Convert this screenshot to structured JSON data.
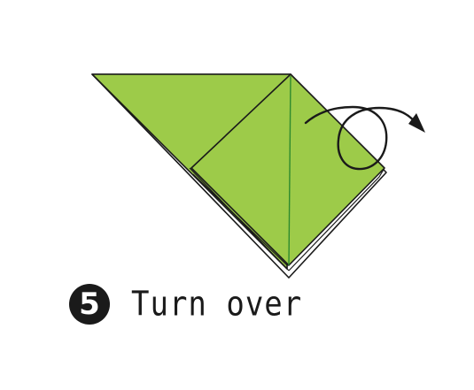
{
  "step": {
    "number": "5",
    "instruction": "Turn over"
  },
  "colors": {
    "paper": "#9dcb49",
    "outline": "#1a1a1a",
    "crease": "#2e8b2e",
    "badge": "#1a1a1a"
  },
  "icons": {
    "fold_arrow": "turn-over-arrow-icon"
  }
}
